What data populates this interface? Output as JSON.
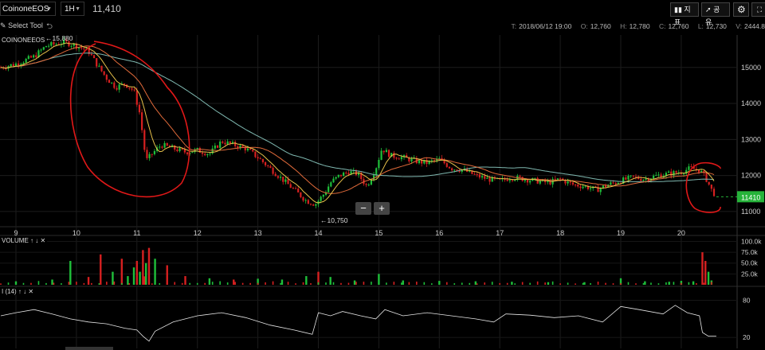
{
  "header": {
    "symbol": "CoinoneEOS",
    "timeframe": "1H",
    "last_price": "11,410",
    "btn_indicator": "지표",
    "btn_share": "공유"
  },
  "toolbar": {
    "select_tool": "Select Tool"
  },
  "ohlc": {
    "time_label": "T:",
    "time": "2018/06/12 19:00",
    "o_label": "O:",
    "o": "12,760",
    "h_label": "H:",
    "h": "12,780",
    "c_label": "C:",
    "c": "12,760",
    "l_label": "L:",
    "l": "12,730",
    "v_label": "V:",
    "v": "2444.8"
  },
  "colors": {
    "up": "#1fbf3a",
    "down": "#d62020",
    "ma_fast": "#e9c24a",
    "ma_mid": "#e06a3a",
    "ma_slow": "#7fb8b0",
    "annotation": "#e01818",
    "rsi": "#e6e6e6",
    "price_tag": "#26b33a"
  },
  "chart_data": [
    {
      "type": "candlestick",
      "pane": "price",
      "legend": "COINONEEOS",
      "x_labels": [
        "9",
        "10",
        "11",
        "12",
        "13",
        "14",
        "15",
        "16",
        "17",
        "18",
        "19",
        "20"
      ],
      "y_ticks": [
        11000,
        12000,
        13000,
        14000,
        15000
      ],
      "ylim": [
        10600,
        15900
      ],
      "annotations": {
        "high": "←15,880",
        "low": "←10,750",
        "price_tag": "11410"
      },
      "close_path": {
        "x": [
          8.75,
          9.0,
          9.3,
          9.5,
          9.8,
          10.0,
          10.2,
          10.35,
          10.5,
          10.65,
          10.8,
          10.95,
          11.05,
          11.15,
          11.25,
          11.4,
          11.6,
          11.8,
          12.0,
          12.2,
          12.4,
          12.6,
          12.8,
          13.0,
          13.2,
          13.4,
          13.6,
          13.8,
          13.95,
          14.1,
          14.2,
          14.35,
          14.5,
          14.65,
          14.8,
          14.95,
          15.05,
          15.2,
          15.4,
          15.6,
          15.8,
          16.0,
          16.2,
          16.4,
          16.6,
          16.8,
          17.0,
          17.2,
          17.4,
          17.6,
          17.8,
          18.0,
          18.2,
          18.4,
          18.6,
          18.8,
          19.0,
          19.2,
          19.4,
          19.6,
          19.8,
          20.0,
          20.15,
          20.3,
          20.4,
          20.5,
          20.58
        ],
        "y": [
          15000,
          15100,
          15300,
          15600,
          15700,
          15600,
          15450,
          15050,
          14700,
          14450,
          14550,
          14350,
          13700,
          12400,
          12600,
          12850,
          12750,
          12650,
          12700,
          12600,
          12950,
          12850,
          12750,
          12500,
          12200,
          11900,
          11600,
          11300,
          11200,
          11500,
          11800,
          12000,
          12100,
          12050,
          11700,
          12200,
          12750,
          12550,
          12500,
          12400,
          12350,
          12450,
          12200,
          12150,
          12000,
          11900,
          11850,
          11950,
          11900,
          11850,
          11800,
          11900,
          11750,
          11700,
          11600,
          11750,
          11850,
          11950,
          11900,
          12000,
          12050,
          12100,
          12200,
          12150,
          11950,
          11600,
          11410
        ]
      }
    },
    {
      "type": "bar",
      "pane": "volume",
      "legend": "VOLUME",
      "y_ticks": [
        "100.0k",
        "75.0k",
        "50.0k",
        "25.0k"
      ],
      "ylim": [
        0,
        110000
      ],
      "x": [
        9.0,
        9.6,
        9.9,
        10.2,
        10.4,
        10.6,
        10.75,
        10.85,
        10.95,
        11.0,
        11.05,
        11.1,
        11.15,
        11.2,
        11.3,
        11.5,
        11.8,
        12.2,
        12.6,
        13.0,
        13.4,
        13.8,
        14.0,
        14.2,
        14.6,
        15.0,
        15.4,
        16.0,
        16.6,
        17.2,
        17.8,
        18.4,
        19.0,
        19.4,
        19.8,
        20.0,
        20.2,
        20.35,
        20.4,
        20.45,
        20.5
      ],
      "values": [
        8000,
        12000,
        55000,
        18000,
        70000,
        30000,
        60000,
        20000,
        40000,
        55000,
        30000,
        80000,
        50000,
        85000,
        60000,
        45000,
        20000,
        15000,
        12000,
        14000,
        12000,
        20000,
        30000,
        18000,
        10000,
        25000,
        10000,
        9000,
        8000,
        7000,
        6000,
        6000,
        15000,
        8000,
        7000,
        9000,
        8000,
        75000,
        55000,
        30000,
        10000
      ]
    },
    {
      "type": "line",
      "pane": "rsi",
      "legend": "I (14)",
      "y_ticks": [
        80,
        20
      ],
      "ylim": [
        10,
        100
      ],
      "x": [
        8.75,
        9.0,
        9.3,
        9.6,
        9.9,
        10.2,
        10.5,
        10.8,
        11.0,
        11.1,
        11.2,
        11.3,
        11.6,
        12.0,
        12.4,
        12.8,
        13.2,
        13.6,
        13.9,
        14.0,
        14.2,
        14.4,
        14.7,
        14.95,
        15.1,
        15.4,
        15.8,
        16.2,
        16.6,
        16.9,
        17.1,
        17.5,
        17.9,
        18.3,
        18.7,
        19.0,
        19.3,
        19.7,
        19.9,
        20.1,
        20.3,
        20.35,
        20.45,
        20.58
      ],
      "values": [
        55,
        60,
        65,
        58,
        50,
        45,
        42,
        35,
        32,
        22,
        14,
        30,
        45,
        55,
        60,
        52,
        40,
        32,
        25,
        60,
        55,
        62,
        55,
        50,
        65,
        55,
        60,
        55,
        50,
        45,
        58,
        56,
        52,
        55,
        45,
        70,
        65,
        58,
        72,
        60,
        55,
        28,
        22,
        22
      ]
    }
  ]
}
